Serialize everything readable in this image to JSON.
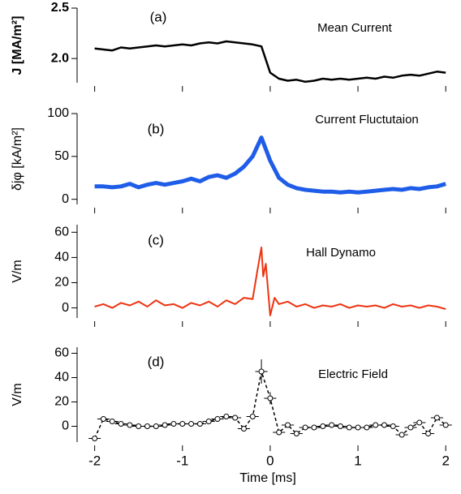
{
  "chart_data": [
    {
      "type": "line",
      "label": "(a)",
      "title": "Mean Current",
      "ylabel": "J [MA/m²]",
      "xlim": [
        -2.2,
        2.1
      ],
      "xticks": [
        -2,
        -1,
        0,
        1,
        2
      ],
      "ylim": [
        1.76,
        2.5
      ],
      "yticks": [
        {
          "value": 2,
          "label": "2.0"
        },
        {
          "value": 2.5,
          "label": "2.5"
        }
      ],
      "series": [
        {
          "color": "#000000",
          "x": [
            -2.0,
            -1.9,
            -1.8,
            -1.7,
            -1.6,
            -1.5,
            -1.4,
            -1.3,
            -1.2,
            -1.1,
            -1.0,
            -0.9,
            -0.8,
            -0.7,
            -0.6,
            -0.5,
            -0.4,
            -0.3,
            -0.2,
            -0.1,
            0.0,
            0.1,
            0.2,
            0.3,
            0.4,
            0.5,
            0.6,
            0.7,
            0.8,
            0.9,
            1.0,
            1.1,
            1.2,
            1.3,
            1.4,
            1.5,
            1.6,
            1.7,
            1.8,
            1.9,
            2.0
          ],
          "values": [
            2.1,
            2.09,
            2.08,
            2.11,
            2.1,
            2.11,
            2.12,
            2.13,
            2.12,
            2.13,
            2.14,
            2.13,
            2.15,
            2.16,
            2.15,
            2.17,
            2.16,
            2.15,
            2.14,
            2.12,
            1.86,
            1.8,
            1.78,
            1.79,
            1.77,
            1.78,
            1.8,
            1.79,
            1.8,
            1.79,
            1.8,
            1.81,
            1.8,
            1.82,
            1.81,
            1.83,
            1.84,
            1.83,
            1.85,
            1.87,
            1.86
          ]
        }
      ]
    },
    {
      "type": "line",
      "label": "(b)",
      "title": "Current Fluctutaion",
      "ylabel": "δjφ [kA/m²]",
      "xlim": [
        -2.2,
        2.1
      ],
      "xticks": [
        -2,
        -1,
        0,
        1,
        2
      ],
      "ylim": [
        -6,
        100
      ],
      "yticks": [
        0,
        50,
        100
      ],
      "series": [
        {
          "color": "#1f5de8",
          "x": [
            -2.0,
            -1.9,
            -1.8,
            -1.7,
            -1.6,
            -1.5,
            -1.4,
            -1.3,
            -1.2,
            -1.1,
            -1.0,
            -0.9,
            -0.8,
            -0.7,
            -0.6,
            -0.5,
            -0.4,
            -0.3,
            -0.2,
            -0.1,
            0.0,
            0.1,
            0.2,
            0.3,
            0.4,
            0.5,
            0.6,
            0.7,
            0.8,
            0.9,
            1.0,
            1.1,
            1.2,
            1.3,
            1.4,
            1.5,
            1.6,
            1.7,
            1.8,
            1.9,
            2.0
          ],
          "values": [
            15,
            15,
            14,
            15,
            18,
            14,
            17,
            19,
            17,
            19,
            21,
            24,
            21,
            26,
            28,
            25,
            30,
            38,
            50,
            72,
            45,
            25,
            17,
            13,
            11,
            10,
            9,
            9,
            8,
            9,
            8,
            9,
            10,
            11,
            12,
            11,
            13,
            12,
            14,
            15,
            18
          ]
        }
      ]
    },
    {
      "type": "line",
      "label": "(c)",
      "title": "Hall Dynamo",
      "ylabel": "V/m",
      "xlim": [
        -2.2,
        2.1
      ],
      "xticks": [
        -2,
        -1,
        0,
        1,
        2
      ],
      "ylim": [
        -8,
        66
      ],
      "yticks": [
        0,
        20,
        40,
        60
      ],
      "series": [
        {
          "color": "#ee3311",
          "x": [
            -2.0,
            -1.9,
            -1.8,
            -1.7,
            -1.6,
            -1.5,
            -1.4,
            -1.3,
            -1.2,
            -1.1,
            -1.0,
            -0.9,
            -0.8,
            -0.7,
            -0.6,
            -0.5,
            -0.4,
            -0.3,
            -0.2,
            -0.15,
            -0.1,
            -0.08,
            -0.05,
            0.0,
            0.05,
            0.1,
            0.2,
            0.3,
            0.4,
            0.5,
            0.6,
            0.7,
            0.8,
            0.9,
            1.0,
            1.1,
            1.2,
            1.3,
            1.4,
            1.5,
            1.6,
            1.7,
            1.8,
            1.9,
            2.0
          ],
          "values": [
            1,
            3,
            0,
            4,
            2,
            5,
            1,
            6,
            2,
            3,
            0,
            4,
            2,
            5,
            1,
            6,
            3,
            8,
            7,
            28,
            48,
            25,
            35,
            -6,
            8,
            3,
            5,
            1,
            3,
            0,
            2,
            1,
            3,
            0,
            2,
            1,
            2,
            0,
            3,
            1,
            2,
            0,
            2,
            1,
            -1
          ]
        }
      ]
    },
    {
      "type": "errorbar",
      "label": "(d)",
      "title": "Electric Field",
      "ylabel": "V/m",
      "xlabel": "Time [ms]",
      "xlim": [
        -2.2,
        2.1
      ],
      "xticks": [
        -2,
        -1,
        0,
        1,
        2
      ],
      "ylim": [
        -13,
        65
      ],
      "yticks": [
        0,
        20,
        40,
        60
      ],
      "xerr": 0.07,
      "series": [
        {
          "color": "#000000",
          "x": [
            -2.0,
            -1.9,
            -1.8,
            -1.7,
            -1.6,
            -1.5,
            -1.4,
            -1.3,
            -1.2,
            -1.1,
            -1.0,
            -0.9,
            -0.8,
            -0.7,
            -0.6,
            -0.5,
            -0.4,
            -0.3,
            -0.2,
            -0.1,
            0.0,
            0.1,
            0.2,
            0.3,
            0.4,
            0.5,
            0.6,
            0.7,
            0.8,
            0.9,
            1.0,
            1.1,
            1.2,
            1.3,
            1.4,
            1.5,
            1.6,
            1.7,
            1.8,
            1.9,
            2.0
          ],
          "values": [
            -10,
            6,
            4,
            2,
            1,
            0,
            0,
            0,
            1,
            2,
            2,
            2,
            2,
            4,
            6,
            8,
            7,
            -2,
            8,
            45,
            23,
            -5,
            1,
            -6,
            -1,
            -1,
            0,
            1,
            0,
            -1,
            -1,
            -1,
            1,
            1,
            0,
            -7,
            -1,
            3,
            -6,
            7,
            1
          ],
          "yerr": [
            2,
            2,
            2,
            2,
            2,
            2,
            2,
            2,
            2,
            2,
            2,
            2,
            2,
            2,
            2,
            2,
            2,
            2,
            2,
            10,
            5,
            2,
            2,
            2,
            2,
            2,
            2,
            2,
            2,
            2,
            2,
            2,
            2,
            2,
            2,
            2,
            2,
            2,
            2,
            2,
            2
          ]
        }
      ]
    }
  ]
}
